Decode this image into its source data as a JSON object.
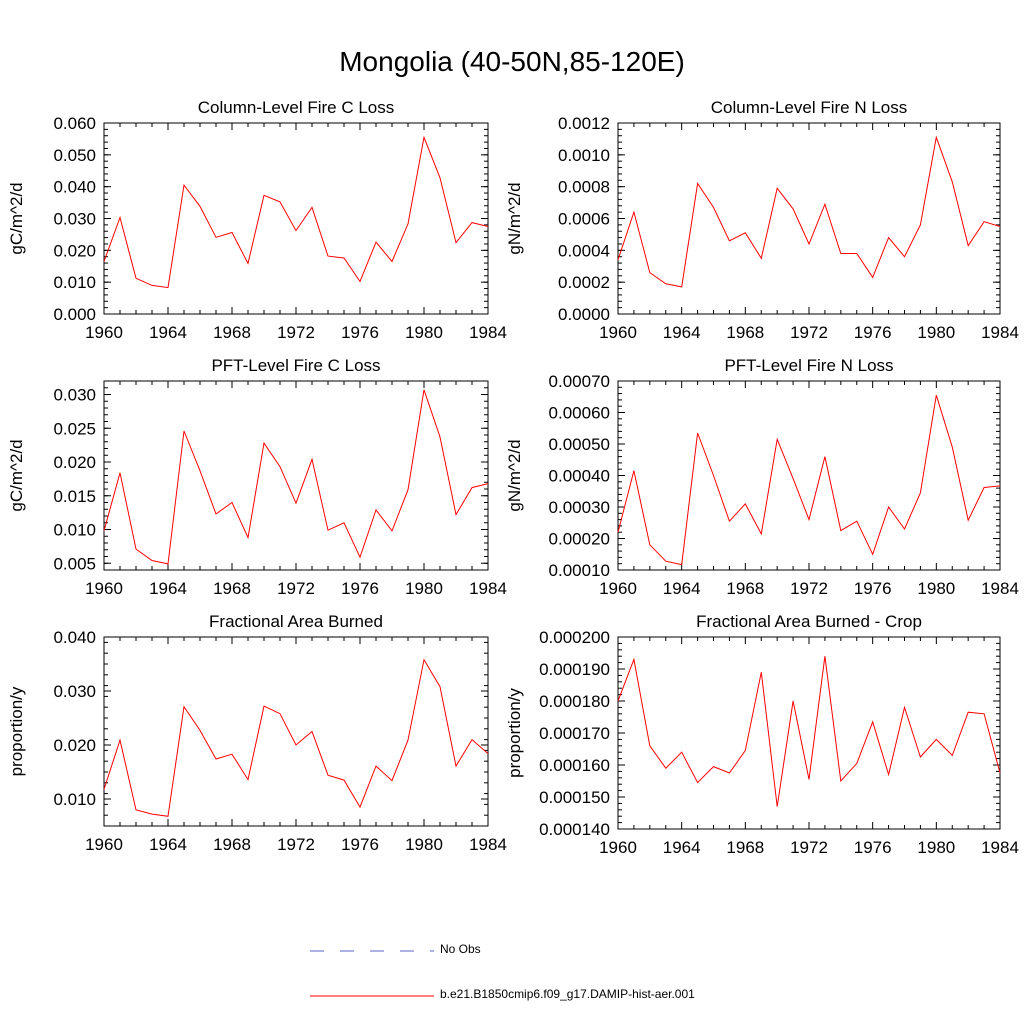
{
  "main_title": "Mongolia (40-50N,85-120E)",
  "legend": {
    "obs_label": "No Obs",
    "obs_color": "#5a64c8",
    "model_label": "b.e21.B1850cmip6.f09_g17.DAMIP-hist-aer.001",
    "model_color": "#ff0000"
  },
  "chart_data": [
    {
      "type": "line",
      "title": "Column-Level Fire C Loss",
      "ylabel": "gC/m^2/d",
      "xlim": [
        1960,
        1984
      ],
      "ylim": [
        0.0,
        0.06
      ],
      "x_ticks": [
        "1960",
        "1964",
        "1968",
        "1972",
        "1976",
        "1980",
        "1984"
      ],
      "y_ticks": [
        "0.000",
        "0.010",
        "0.020",
        "0.030",
        "0.040",
        "0.050",
        "0.060"
      ],
      "x": [
        1960,
        1961,
        1962,
        1963,
        1964,
        1965,
        1966,
        1967,
        1968,
        1969,
        1970,
        1971,
        1972,
        1973,
        1974,
        1975,
        1976,
        1977,
        1978,
        1979,
        1980,
        1981,
        1982,
        1983,
        1984
      ],
      "series": [
        {
          "name": "b.e21.B1850cmip6.f09_g17.DAMIP-hist-aer.001",
          "values": [
            0.0165,
            0.0303,
            0.0112,
            0.009,
            0.0083,
            0.0405,
            0.0338,
            0.0241,
            0.0256,
            0.0159,
            0.0373,
            0.0352,
            0.0262,
            0.0335,
            0.0182,
            0.0176,
            0.0102,
            0.0226,
            0.0165,
            0.0283,
            0.0555,
            0.0428,
            0.0224,
            0.0287,
            0.0275
          ]
        }
      ]
    },
    {
      "type": "line",
      "title": "Column-Level Fire N Loss",
      "ylabel": "gN/m^2/d",
      "xlim": [
        1960,
        1984
      ],
      "ylim": [
        0.0,
        0.0012
      ],
      "x_ticks": [
        "1960",
        "1964",
        "1968",
        "1972",
        "1976",
        "1980",
        "1984"
      ],
      "y_ticks": [
        "0.0000",
        "0.0002",
        "0.0004",
        "0.0006",
        "0.0008",
        "0.0010",
        "0.0012"
      ],
      "x": [
        1960,
        1961,
        1962,
        1963,
        1964,
        1965,
        1966,
        1967,
        1968,
        1969,
        1970,
        1971,
        1972,
        1973,
        1974,
        1975,
        1976,
        1977,
        1978,
        1979,
        1980,
        1981,
        1982,
        1983,
        1984
      ],
      "series": [
        {
          "name": "b.e21.B1850cmip6.f09_g17.DAMIP-hist-aer.001",
          "values": [
            0.00034,
            0.00064,
            0.00026,
            0.00019,
            0.00017,
            0.00082,
            0.00067,
            0.00046,
            0.00051,
            0.00035,
            0.00079,
            0.00066,
            0.00044,
            0.00069,
            0.00038,
            0.00038,
            0.00023,
            0.00048,
            0.00036,
            0.00056,
            0.00111,
            0.00083,
            0.00043,
            0.00058,
            0.00055
          ]
        }
      ]
    },
    {
      "type": "line",
      "title": "PFT-Level Fire C Loss",
      "ylabel": "gC/m^2/d",
      "xlim": [
        1960,
        1984
      ],
      "ylim": [
        0.004,
        0.032
      ],
      "x_ticks": [
        "1960",
        "1964",
        "1968",
        "1972",
        "1976",
        "1980",
        "1984"
      ],
      "y_ticks": [
        "0.005",
        "0.010",
        "0.015",
        "0.020",
        "0.025",
        "0.030"
      ],
      "y_tick_values": [
        0.005,
        0.01,
        0.015,
        0.02,
        0.025,
        0.03
      ],
      "x": [
        1960,
        1961,
        1962,
        1963,
        1964,
        1965,
        1966,
        1967,
        1968,
        1969,
        1970,
        1971,
        1972,
        1973,
        1974,
        1975,
        1976,
        1977,
        1978,
        1979,
        1980,
        1981,
        1982,
        1983,
        1984
      ],
      "series": [
        {
          "name": "b.e21.B1850cmip6.f09_g17.DAMIP-hist-aer.001",
          "values": [
            0.0098,
            0.0184,
            0.0071,
            0.0054,
            0.0049,
            0.0246,
            0.0187,
            0.0123,
            0.014,
            0.0088,
            0.0228,
            0.0193,
            0.0139,
            0.0204,
            0.0099,
            0.011,
            0.0059,
            0.0129,
            0.0098,
            0.0159,
            0.0307,
            0.0237,
            0.0122,
            0.0162,
            0.0168
          ]
        }
      ]
    },
    {
      "type": "line",
      "title": "PFT-Level Fire N Loss",
      "ylabel": "gN/m^2/d",
      "xlim": [
        1960,
        1984
      ],
      "ylim": [
        0.0001,
        0.0007
      ],
      "x_ticks": [
        "1960",
        "1964",
        "1968",
        "1972",
        "1976",
        "1980",
        "1984"
      ],
      "y_ticks": [
        "0.00010",
        "0.00020",
        "0.00030",
        "0.00040",
        "0.00050",
        "0.00060",
        "0.00070"
      ],
      "x": [
        1960,
        1961,
        1962,
        1963,
        1964,
        1965,
        1966,
        1967,
        1968,
        1969,
        1970,
        1971,
        1972,
        1973,
        1974,
        1975,
        1976,
        1977,
        1978,
        1979,
        1980,
        1981,
        1982,
        1983,
        1984
      ],
      "series": [
        {
          "name": "b.e21.B1850cmip6.f09_g17.DAMIP-hist-aer.001",
          "values": [
            0.00022,
            0.000415,
            0.00018,
            0.000128,
            0.000117,
            0.000535,
            0.0004,
            0.000255,
            0.00031,
            0.000215,
            0.000515,
            0.00039,
            0.00026,
            0.00046,
            0.000225,
            0.000255,
            0.00015,
            0.0003,
            0.00023,
            0.000345,
            0.000655,
            0.00049,
            0.000258,
            0.000362,
            0.000367
          ]
        }
      ]
    },
    {
      "type": "line",
      "title": "Fractional Area Burned",
      "ylabel": "proportion/y",
      "xlim": [
        1960,
        1984
      ],
      "ylim": [
        0.005,
        0.04
      ],
      "x_ticks": [
        "1960",
        "1964",
        "1968",
        "1972",
        "1976",
        "1980",
        "1984"
      ],
      "y_ticks": [
        "0.010",
        "0.020",
        "0.030",
        "0.040"
      ],
      "y_tick_values": [
        0.01,
        0.02,
        0.03,
        0.04
      ],
      "x": [
        1960,
        1961,
        1962,
        1963,
        1964,
        1965,
        1966,
        1967,
        1968,
        1969,
        1970,
        1971,
        1972,
        1973,
        1974,
        1975,
        1976,
        1977,
        1978,
        1979,
        1980,
        1981,
        1982,
        1983,
        1984
      ],
      "series": [
        {
          "name": "b.e21.B1850cmip6.f09_g17.DAMIP-hist-aer.001",
          "values": [
            0.0118,
            0.0209,
            0.008,
            0.0072,
            0.0068,
            0.0271,
            0.0227,
            0.0174,
            0.0183,
            0.0136,
            0.0272,
            0.0258,
            0.02,
            0.0225,
            0.0144,
            0.0135,
            0.0085,
            0.0161,
            0.0134,
            0.0209,
            0.0358,
            0.0308,
            0.0161,
            0.021,
            0.0184
          ]
        }
      ]
    },
    {
      "type": "line",
      "title": "Fractional Area Burned - Crop",
      "ylabel": "proportion/y",
      "xlim": [
        1960,
        1984
      ],
      "ylim": [
        0.00014,
        0.0002
      ],
      "x_ticks": [
        "1960",
        "1964",
        "1968",
        "1972",
        "1976",
        "1980",
        "1984"
      ],
      "y_ticks": [
        "0.000140",
        "0.000150",
        "0.000160",
        "0.000170",
        "0.000180",
        "0.000190",
        "0.000200"
      ],
      "x": [
        1960,
        1961,
        1962,
        1963,
        1964,
        1965,
        1966,
        1967,
        1968,
        1969,
        1970,
        1971,
        1972,
        1973,
        1974,
        1975,
        1976,
        1977,
        1978,
        1979,
        1980,
        1981,
        1982,
        1983,
        1984
      ],
      "series": [
        {
          "name": "b.e21.B1850cmip6.f09_g17.DAMIP-hist-aer.001",
          "values": [
            0.00018,
            0.000193,
            0.000166,
            0.000159,
            0.000164,
            0.0001545,
            0.0001595,
            0.0001575,
            0.0001645,
            0.000189,
            0.000147,
            0.00018,
            0.0001555,
            0.000194,
            0.000155,
            0.0001605,
            0.0001735,
            0.000157,
            0.000178,
            0.0001625,
            0.000168,
            0.000163,
            0.0001765,
            0.000176,
            0.0001575
          ]
        }
      ]
    }
  ]
}
